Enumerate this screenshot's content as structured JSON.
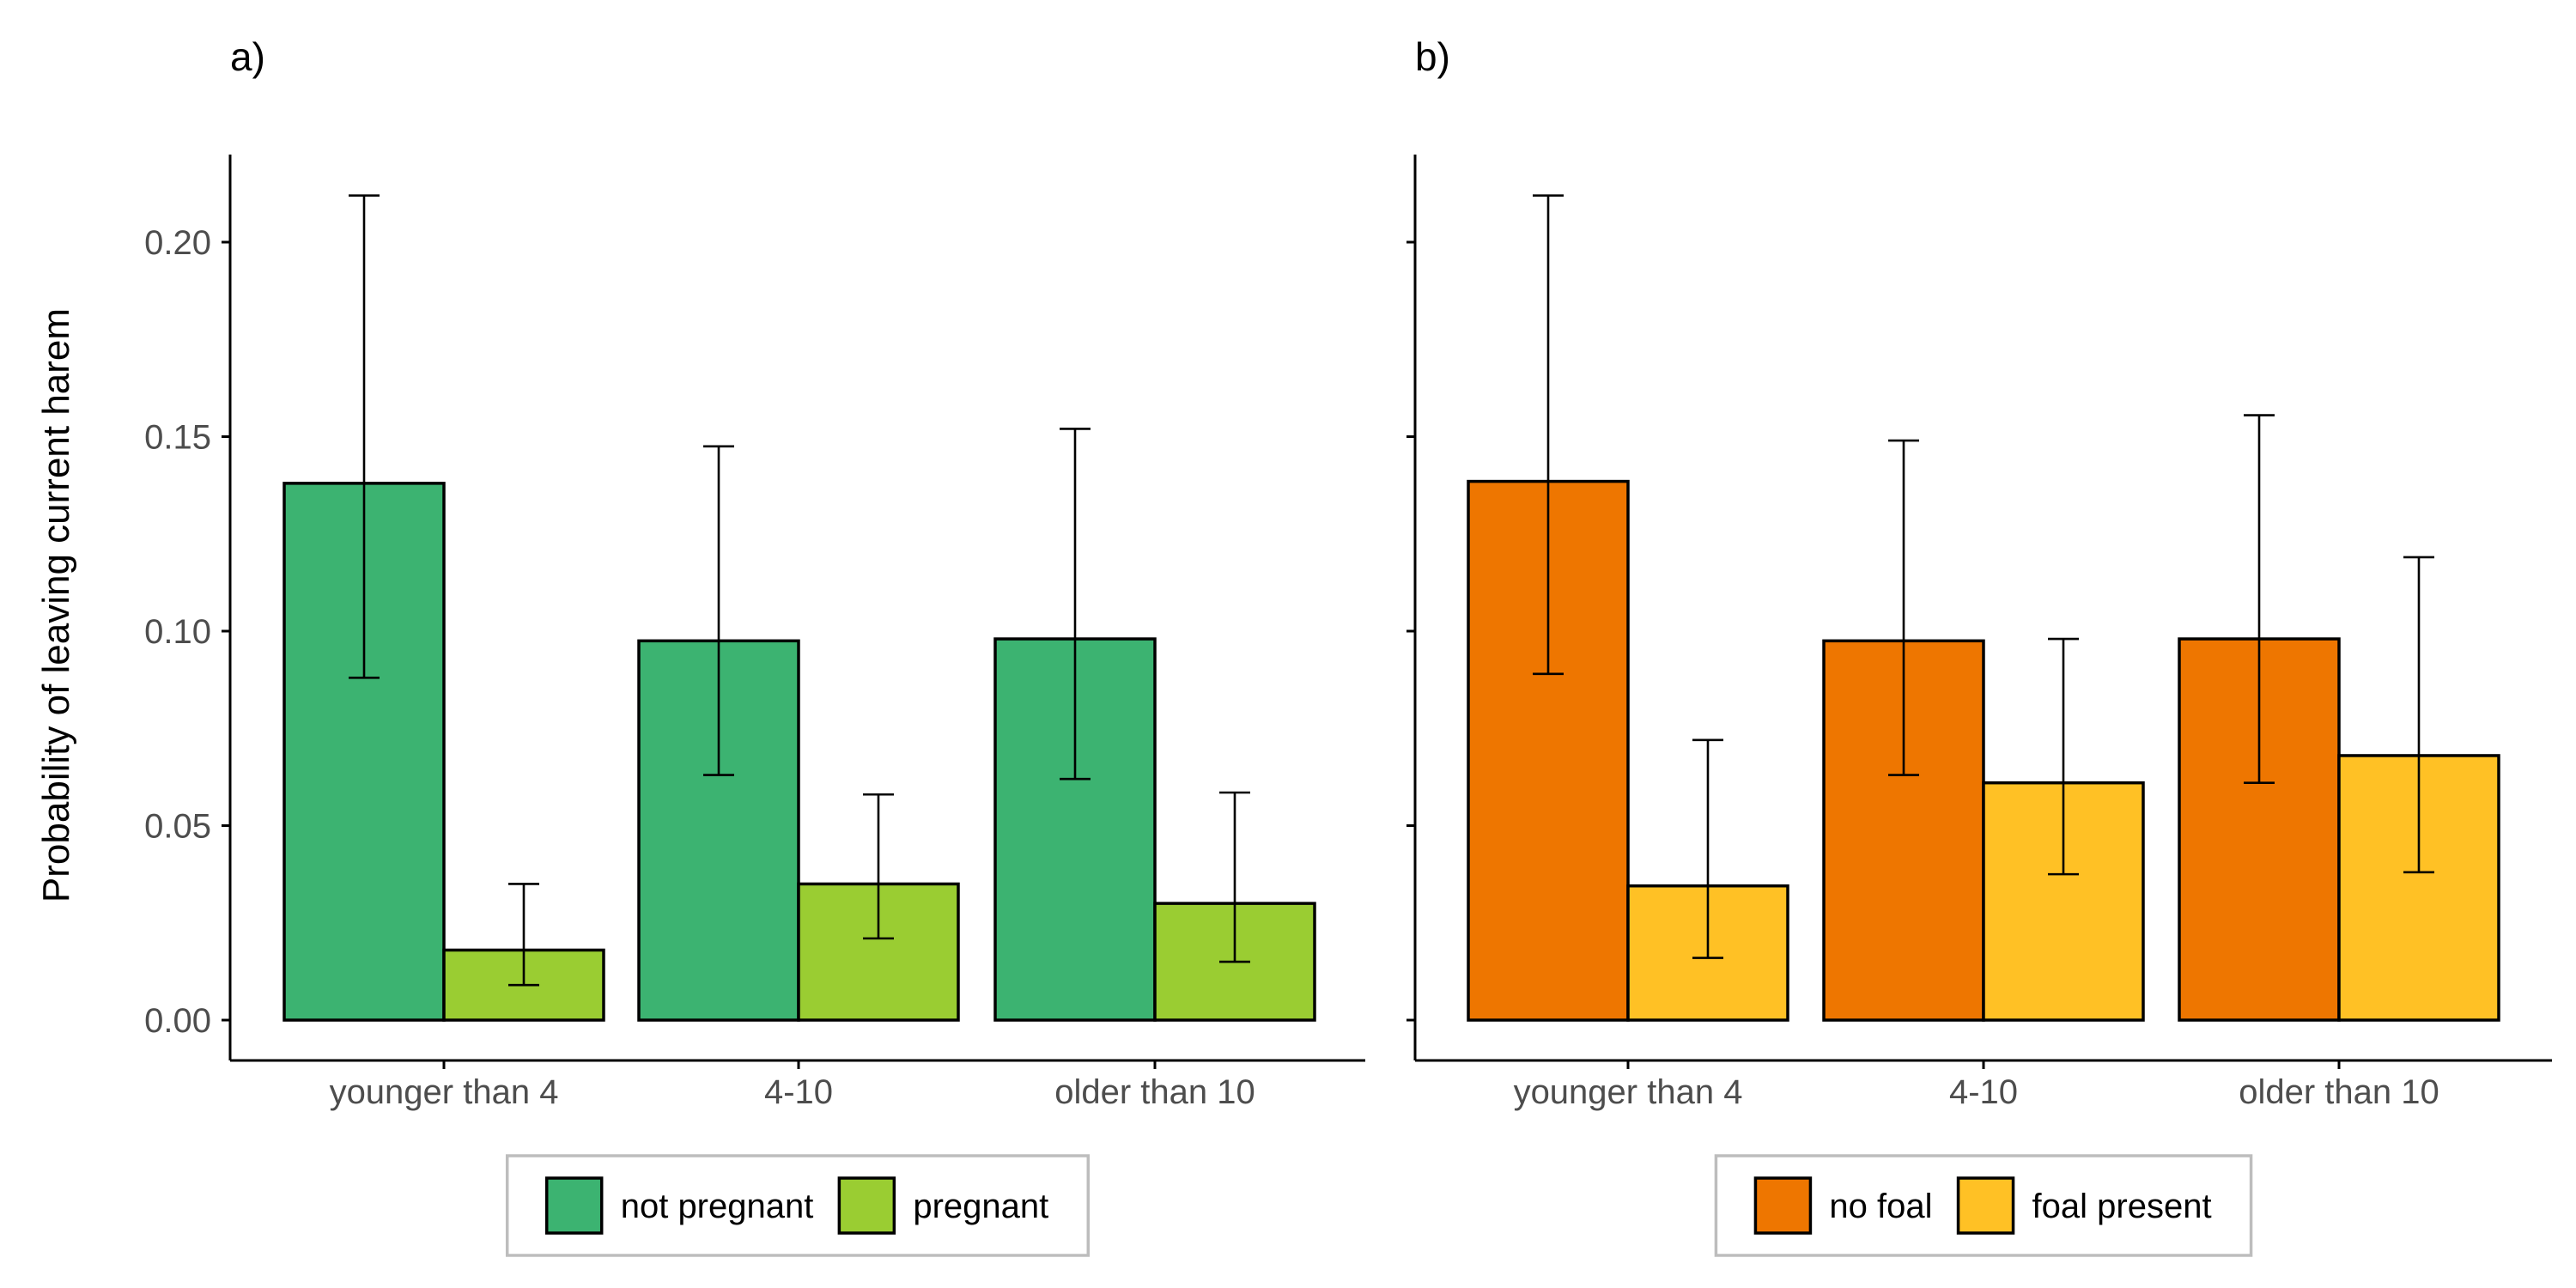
{
  "ylabel": "Probability of leaving current harem",
  "y_ticks": [
    "0.00",
    "0.05",
    "0.10",
    "0.15",
    "0.20"
  ],
  "chart_data": [
    {
      "type": "bar",
      "panel_label": "a)",
      "categories": [
        "younger than 4",
        "4-10",
        "older than 10"
      ],
      "ylabel": "Probability of leaving current harem",
      "ylim": [
        0,
        0.222
      ],
      "legend_position": "bottom",
      "series": [
        {
          "name": "not pregnant",
          "color": "#3CB371",
          "values": [
            0.138,
            0.0975,
            0.098
          ],
          "err_low": [
            0.088,
            0.063,
            0.062
          ],
          "err_high": [
            0.212,
            0.1475,
            0.152
          ]
        },
        {
          "name": "pregnant",
          "color": "#9ACD32",
          "values": [
            0.018,
            0.035,
            0.03
          ],
          "err_low": [
            0.009,
            0.021,
            0.015
          ],
          "err_high": [
            0.035,
            0.058,
            0.0585
          ]
        }
      ]
    },
    {
      "type": "bar",
      "panel_label": "b)",
      "categories": [
        "younger than 4",
        "4-10",
        "older than 10"
      ],
      "ylim": [
        0,
        0.222
      ],
      "legend_position": "bottom",
      "series": [
        {
          "name": "no foal",
          "color": "#EE7600",
          "values": [
            0.1385,
            0.0975,
            0.098
          ],
          "err_low": [
            0.089,
            0.063,
            0.061
          ],
          "err_high": [
            0.212,
            0.149,
            0.1555
          ]
        },
        {
          "name": "foal present",
          "color": "#FFC125",
          "values": [
            0.0345,
            0.061,
            0.068
          ],
          "err_low": [
            0.016,
            0.0375,
            0.038
          ],
          "err_high": [
            0.072,
            0.098,
            0.119
          ]
        }
      ]
    }
  ]
}
